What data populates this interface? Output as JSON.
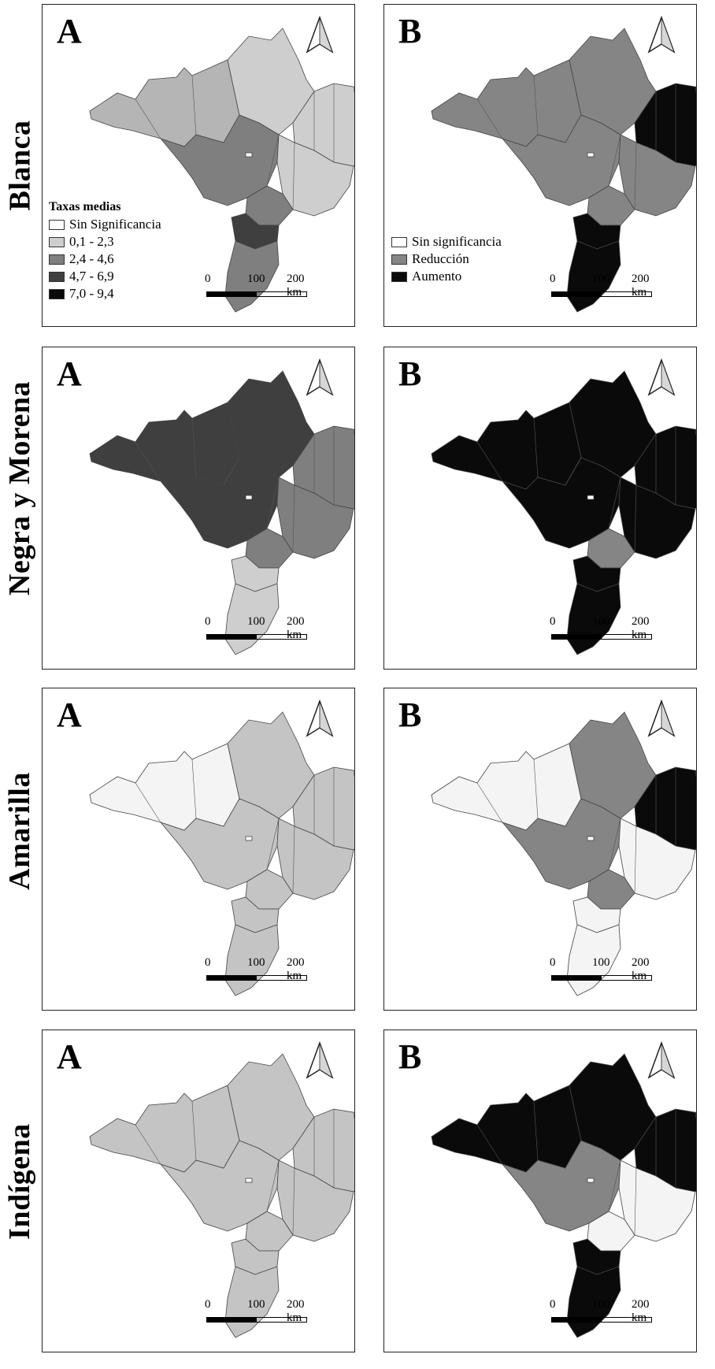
{
  "figure": {
    "rows": [
      {
        "group": "Blanca",
        "a_letter": "A",
        "b_letter": "B",
        "a_fill": {
          "west": "#b5b5b5",
          "center_west": "#7f7f7f",
          "north": "#cecece",
          "northeast": "#cecece",
          "southeast": "#cecece",
          "sao_paulo": "#7f7f7f",
          "parana": "#3f3f3f",
          "south": "#7f7f7f"
        },
        "b_fill": {
          "west": "#858585",
          "center_west": "#858585",
          "north": "#858585",
          "northeast": "#0a0a0a",
          "southeast": "#858585",
          "sao_paulo": "#858585",
          "parana": "#0a0a0a",
          "south": "#0a0a0a"
        }
      },
      {
        "group": "Negra y Morena",
        "a_letter": "A",
        "b_letter": "B",
        "a_fill": {
          "west": "#3f3f3f",
          "center_west": "#3f3f3f",
          "north": "#3f3f3f",
          "northeast": "#7f7f7f",
          "southeast": "#7f7f7f",
          "sao_paulo": "#7f7f7f",
          "parana": "#cecece",
          "south": "#cecece"
        },
        "b_fill": {
          "west": "#0a0a0a",
          "center_west": "#0a0a0a",
          "north": "#0a0a0a",
          "northeast": "#0a0a0a",
          "southeast": "#0a0a0a",
          "sao_paulo": "#858585",
          "parana": "#0a0a0a",
          "south": "#0a0a0a"
        }
      },
      {
        "group": "Amarilla",
        "a_letter": "A",
        "b_letter": "B",
        "a_fill": {
          "west": "#f4f4f4",
          "center_west": "#c4c4c4",
          "north": "#c4c4c4",
          "northeast": "#c4c4c4",
          "southeast": "#c4c4c4",
          "sao_paulo": "#c4c4c4",
          "parana": "#c4c4c4",
          "south": "#c4c4c4"
        },
        "b_fill": {
          "west": "#f4f4f4",
          "center_west": "#858585",
          "north": "#858585",
          "northeast": "#0a0a0a",
          "southeast": "#f4f4f4",
          "sao_paulo": "#858585",
          "parana": "#f4f4f4",
          "south": "#f4f4f4"
        }
      },
      {
        "group": "Indígena",
        "a_letter": "A",
        "b_letter": "B",
        "a_fill": {
          "west": "#c4c4c4",
          "center_west": "#c4c4c4",
          "north": "#c4c4c4",
          "northeast": "#c4c4c4",
          "southeast": "#c4c4c4",
          "sao_paulo": "#c4c4c4",
          "parana": "#c4c4c4",
          "south": "#c4c4c4"
        },
        "b_fill": {
          "west": "#0a0a0a",
          "center_west": "#858585",
          "north": "#0a0a0a",
          "northeast": "#0a0a0a",
          "southeast": "#f4f4f4",
          "sao_paulo": "#f4f4f4",
          "parana": "#0a0a0a",
          "south": "#0a0a0a"
        }
      }
    ],
    "scale": {
      "t0": "0",
      "t1": "100",
      "t2": "200 km"
    },
    "legend_a": {
      "title": "Taxas medias",
      "items": [
        {
          "label": "Sin Significancia",
          "color": "#ffffff"
        },
        {
          "label": "0,1 - 2,3",
          "color": "#cecece"
        },
        {
          "label": "2,4 - 4,6",
          "color": "#7f7f7f"
        },
        {
          "label": "4,7 - 6,9",
          "color": "#3f3f3f"
        },
        {
          "label": "7,0 - 9,4",
          "color": "#0a0a0a"
        }
      ]
    },
    "legend_b": {
      "items": [
        {
          "label": "Sin significancia",
          "color": "#ffffff"
        },
        {
          "label": "Reducción",
          "color": "#858585"
        },
        {
          "label": "Aumento",
          "color": "#0a0a0a"
        }
      ]
    },
    "icons": {
      "north_arrow": "north-arrow-icon"
    }
  }
}
